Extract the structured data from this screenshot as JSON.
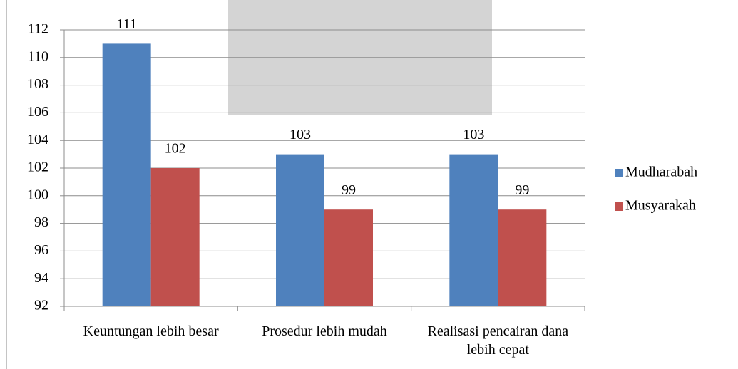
{
  "chart_data": {
    "type": "bar",
    "categories": [
      "Keuntungan lebih besar",
      "Prosedur lebih mudah",
      "Realisasi pencairan dana lebih cepat"
    ],
    "series": [
      {
        "name": "Mudharabah",
        "color": "#4f81bd",
        "values": [
          111,
          103,
          103
        ]
      },
      {
        "name": "Musyarakah",
        "color": "#c0504d",
        "values": [
          102,
          99,
          99
        ]
      }
    ],
    "ylim": [
      92,
      112
    ],
    "yticks": [
      92,
      94,
      96,
      98,
      100,
      102,
      104,
      106,
      108,
      110,
      112
    ],
    "grid": true,
    "legend": "right"
  }
}
